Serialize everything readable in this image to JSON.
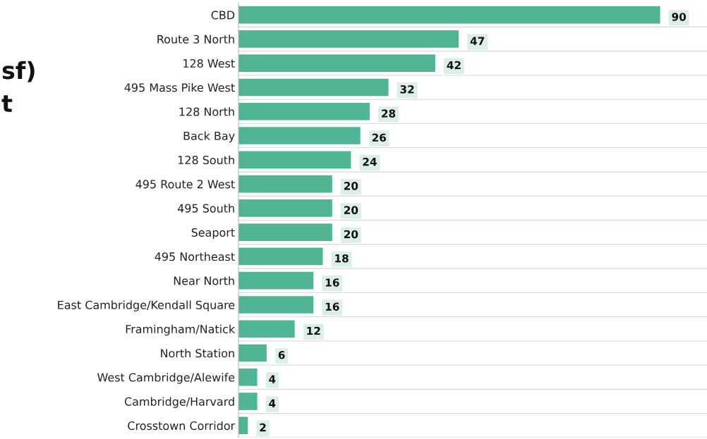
{
  "chart_data": {
    "type": "bar",
    "orientation": "horizontal",
    "categories": [
      "CBD",
      "Route 3 North",
      "128 West",
      "495 Mass Pike West",
      "128 North",
      "Back Bay",
      "128 South",
      "495 Route 2 West",
      "495 South",
      "Seaport",
      "495 Northeast",
      "Near North",
      "East Cambridge/Kendall Square",
      "Framingham/Natick",
      "North Station",
      "West Cambridge/Alewife",
      "Cambridge/Harvard",
      "Crosstown Corridor"
    ],
    "values": [
      90,
      47,
      42,
      32,
      28,
      26,
      24,
      20,
      20,
      20,
      18,
      16,
      16,
      12,
      6,
      4,
      4,
      2
    ],
    "color": "#4fb594",
    "xlim": [
      0,
      100
    ],
    "data_labels": true,
    "tick_labels": "y",
    "grid": "y",
    "legend": false,
    "annotations": [
      "sf)",
      "t"
    ]
  }
}
